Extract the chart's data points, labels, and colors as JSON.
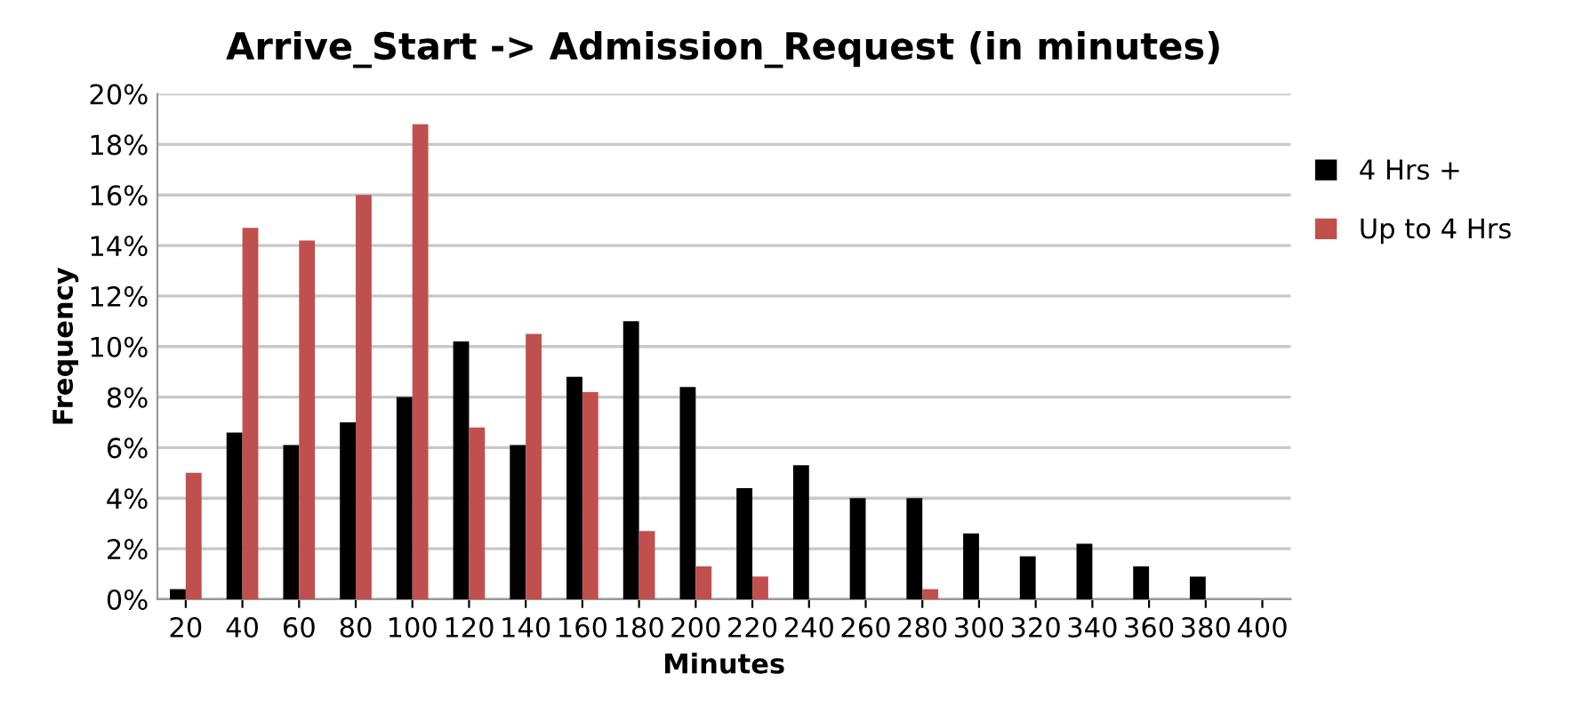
{
  "chart_data": {
    "type": "bar",
    "title": "Arrive_Start -> Admission_Request (in minutes)",
    "xlabel": "Minutes",
    "ylabel": "Frequency",
    "categories": [
      "20",
      "40",
      "60",
      "80",
      "100",
      "120",
      "140",
      "160",
      "180",
      "200",
      "220",
      "240",
      "260",
      "280",
      "300",
      "320",
      "340",
      "360",
      "380",
      "400"
    ],
    "series": [
      {
        "name": "4 Hrs +",
        "color": "#000000",
        "values": [
          0.4,
          6.6,
          6.1,
          7.0,
          8.0,
          10.2,
          6.1,
          8.8,
          11.0,
          8.4,
          4.4,
          5.3,
          4.0,
          4.0,
          2.6,
          1.7,
          2.2,
          1.3,
          0.9,
          0
        ]
      },
      {
        "name": "Up to 4 Hrs",
        "color": "#c0504d",
        "values": [
          5.0,
          14.7,
          14.2,
          16.0,
          18.8,
          6.8,
          10.5,
          8.2,
          2.7,
          1.3,
          0.9,
          0,
          0,
          0.4,
          0,
          0,
          0,
          0,
          0,
          0
        ]
      }
    ],
    "ylim": [
      0,
      20
    ],
    "yticks": [
      {
        "value": 0,
        "label": "0%"
      },
      {
        "value": 2,
        "label": "2%"
      },
      {
        "value": 4,
        "label": "4%"
      },
      {
        "value": 6,
        "label": "6%"
      },
      {
        "value": 8,
        "label": "8%"
      },
      {
        "value": 10,
        "label": "10%"
      },
      {
        "value": 12,
        "label": "12%"
      },
      {
        "value": 14,
        "label": "14%"
      },
      {
        "value": 16,
        "label": "16%"
      },
      {
        "value": 18,
        "label": "18%"
      },
      {
        "value": 20,
        "label": "20%"
      }
    ],
    "grid": "y",
    "legend": "top right"
  }
}
